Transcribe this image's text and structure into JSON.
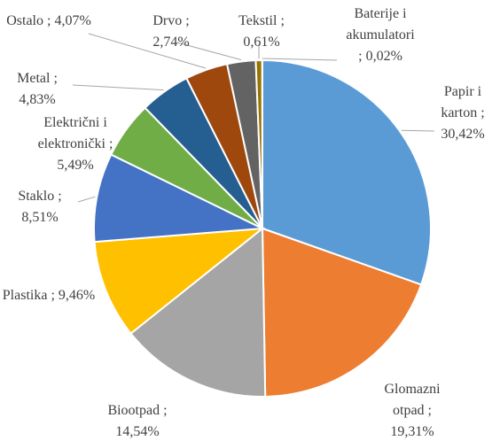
{
  "chart_data": {
    "type": "pie",
    "categories": [
      "Papir i karton",
      "Glomazni otpad",
      "Biootpad",
      "Plastika",
      "Staklo",
      "Električni i elektronički",
      "Metal",
      "Ostalo",
      "Drvo",
      "Tekstil",
      "Baterije i akumulatori"
    ],
    "values": [
      30.42,
      19.31,
      14.54,
      9.46,
      8.51,
      5.49,
      4.83,
      4.07,
      2.74,
      0.61,
      0.02
    ],
    "value_labels": [
      "30,42%",
      "19,31%",
      "14,54%",
      "9,46%",
      "8,51%",
      "5,49%",
      "4,83%",
      "4,07%",
      "2,74%",
      "0,61%",
      "0,02%"
    ],
    "separator": ";",
    "colors": [
      "#5b9bd5",
      "#ed7d31",
      "#a5a5a5",
      "#ffc000",
      "#4472c4",
      "#70ad47",
      "#255e91",
      "#9e480e",
      "#636363",
      "#997300",
      "#264478"
    ]
  }
}
